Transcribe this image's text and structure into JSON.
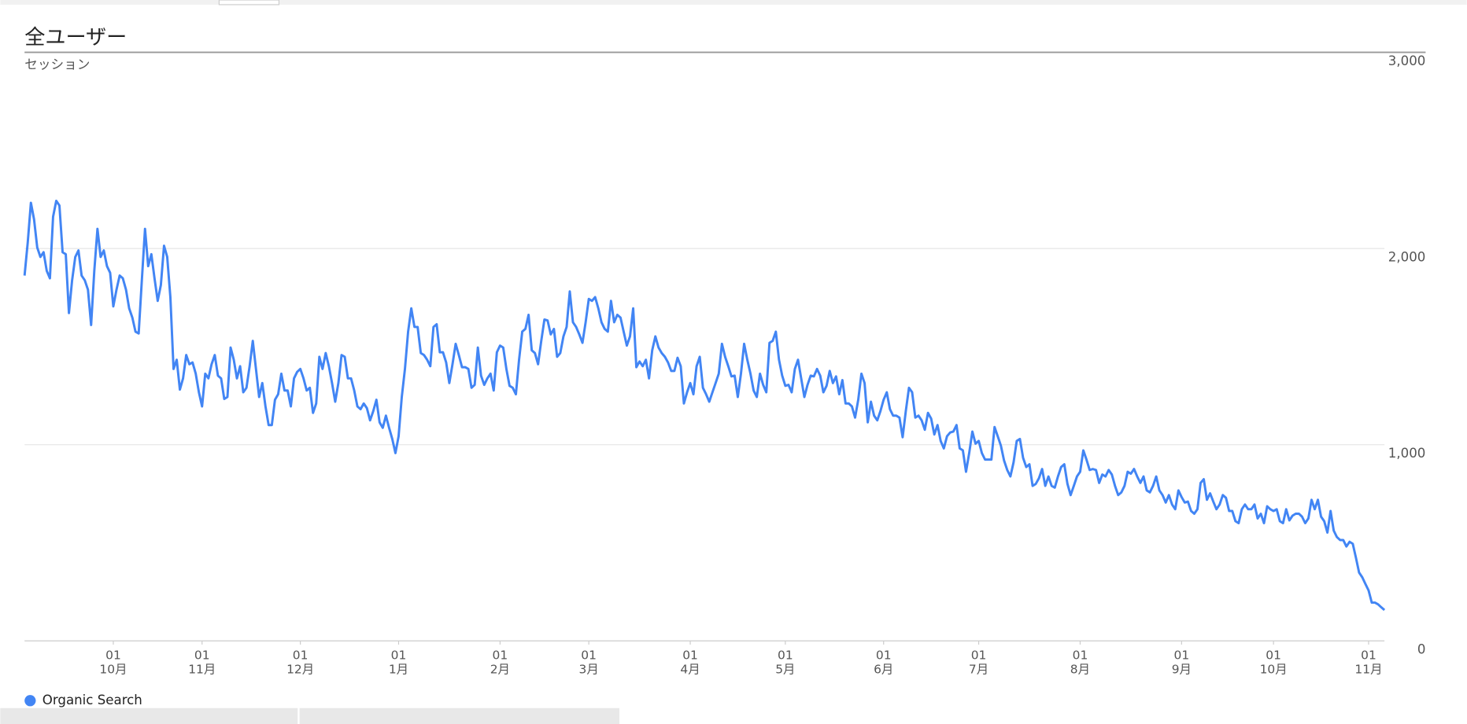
{
  "chart_data": {
    "type": "line",
    "title": "全ユーザー",
    "y_label": "セッション",
    "series": [
      {
        "name": "Organic Search",
        "color": "#4285f4",
        "values": [
          1862,
          2030,
          2233,
          2148,
          2005,
          1957,
          1981,
          1886,
          1848,
          2162,
          2243,
          2219,
          1981,
          1971,
          1671,
          1838,
          1957,
          1990,
          1862,
          1838,
          1790,
          1610,
          1886,
          2100,
          1957,
          1990,
          1910,
          1876,
          1705,
          1790,
          1862,
          1848,
          1790,
          1695,
          1648,
          1576,
          1567,
          1838,
          2100,
          1910,
          1971,
          1848,
          1733,
          1814,
          2014,
          1957,
          1752,
          1386,
          1433,
          1281,
          1338,
          1457,
          1410,
          1419,
          1362,
          1267,
          1195,
          1362,
          1338,
          1410,
          1457,
          1352,
          1338,
          1233,
          1243,
          1495,
          1433,
          1338,
          1400,
          1267,
          1290,
          1400,
          1529,
          1386,
          1243,
          1314,
          1195,
          1100,
          1100,
          1229,
          1257,
          1362,
          1276,
          1276,
          1195,
          1338,
          1371,
          1386,
          1338,
          1276,
          1290,
          1162,
          1210,
          1448,
          1386,
          1467,
          1400,
          1314,
          1219,
          1314,
          1457,
          1448,
          1338,
          1338,
          1276,
          1195,
          1181,
          1210,
          1186,
          1124,
          1171,
          1229,
          1114,
          1086,
          1148,
          1086,
          1029,
          957,
          1043,
          1243,
          1386,
          1576,
          1695,
          1600,
          1600,
          1467,
          1457,
          1433,
          1400,
          1600,
          1614,
          1471,
          1471,
          1419,
          1314,
          1410,
          1514,
          1457,
          1395,
          1395,
          1386,
          1290,
          1305,
          1495,
          1352,
          1305,
          1338,
          1362,
          1276,
          1471,
          1505,
          1495,
          1386,
          1300,
          1290,
          1257,
          1433,
          1576,
          1590,
          1662,
          1481,
          1467,
          1410,
          1529,
          1638,
          1633,
          1562,
          1590,
          1448,
          1467,
          1552,
          1600,
          1781,
          1624,
          1600,
          1562,
          1519,
          1624,
          1743,
          1733,
          1752,
          1695,
          1624,
          1590,
          1576,
          1733,
          1624,
          1662,
          1648,
          1576,
          1505,
          1552,
          1695,
          1395,
          1424,
          1400,
          1433,
          1338,
          1481,
          1552,
          1495,
          1467,
          1448,
          1419,
          1376,
          1376,
          1443,
          1400,
          1210,
          1267,
          1314,
          1257,
          1400,
          1448,
          1290,
          1257,
          1219,
          1267,
          1314,
          1362,
          1514,
          1448,
          1400,
          1348,
          1352,
          1243,
          1362,
          1514,
          1433,
          1362,
          1276,
          1243,
          1362,
          1305,
          1267,
          1519,
          1529,
          1576,
          1433,
          1352,
          1300,
          1305,
          1267,
          1386,
          1433,
          1338,
          1243,
          1305,
          1352,
          1348,
          1386,
          1352,
          1267,
          1300,
          1376,
          1314,
          1348,
          1257,
          1329,
          1210,
          1210,
          1195,
          1138,
          1229,
          1362,
          1314,
          1114,
          1219,
          1148,
          1124,
          1171,
          1229,
          1267,
          1181,
          1148,
          1148,
          1138,
          1038,
          1171,
          1290,
          1267,
          1138,
          1148,
          1124,
          1076,
          1162,
          1133,
          1052,
          1100,
          1019,
          981,
          1043,
          1062,
          1067,
          1100,
          981,
          971,
          862,
          957,
          1067,
          1005,
          1019,
          957,
          924,
          924,
          924,
          1090,
          1043,
          995,
          919,
          871,
          838,
          910,
          1019,
          1029,
          933,
          886,
          900,
          790,
          800,
          829,
          876,
          790,
          838,
          790,
          781,
          838,
          886,
          900,
          800,
          743,
          790,
          838,
          862,
          971,
          924,
          871,
          876,
          871,
          805,
          848,
          838,
          871,
          848,
          790,
          743,
          757,
          790,
          862,
          852,
          876,
          838,
          805,
          838,
          767,
          757,
          790,
          838,
          767,
          743,
          705,
          743,
          695,
          671,
          767,
          733,
          705,
          710,
          662,
          648,
          671,
          805,
          824,
          719,
          752,
          710,
          671,
          695,
          743,
          729,
          662,
          662,
          610,
          600,
          671,
          695,
          671,
          671,
          695,
          624,
          648,
          600,
          686,
          671,
          662,
          671,
          610,
          600,
          671,
          614,
          638,
          648,
          648,
          633,
          600,
          624,
          719,
          671,
          719,
          633,
          610,
          552,
          662,
          562,
          529,
          514,
          514,
          481,
          505,
          495,
          424,
          348,
          324,
          290,
          257,
          195,
          195,
          186,
          171,
          157
        ]
      }
    ],
    "xlim": [
      0,
      429
    ],
    "xticks": [
      {
        "value": 28,
        "label": [
          "01",
          "10月"
        ]
      },
      {
        "value": 56,
        "label": [
          "01",
          "11月"
        ]
      },
      {
        "value": 87,
        "label": [
          "01",
          "12月"
        ]
      },
      {
        "value": 118,
        "label": [
          "01",
          "1月"
        ]
      },
      {
        "value": 150,
        "label": [
          "01",
          "2月"
        ]
      },
      {
        "value": 178,
        "label": [
          "01",
          "3月"
        ]
      },
      {
        "value": 210,
        "label": [
          "01",
          "4月"
        ]
      },
      {
        "value": 240,
        "label": [
          "01",
          "5月"
        ]
      },
      {
        "value": 271,
        "label": [
          "01",
          "6月"
        ]
      },
      {
        "value": 301,
        "label": [
          "01",
          "7月"
        ]
      },
      {
        "value": 333,
        "label": [
          "01",
          "8月"
        ]
      },
      {
        "value": 365,
        "label": [
          "01",
          "9月"
        ]
      },
      {
        "value": 394,
        "label": [
          "01",
          "10月"
        ]
      },
      {
        "value": 424,
        "label": [
          "01",
          "11月"
        ]
      }
    ],
    "ylim": [
      0,
      3000
    ],
    "yticks": [
      0,
      {
        "value": 1000,
        "label": "1,000"
      },
      {
        "value": 2000,
        "label": "2,000"
      },
      {
        "value": 3000,
        "label": "3,000"
      }
    ],
    "grid": true
  }
}
